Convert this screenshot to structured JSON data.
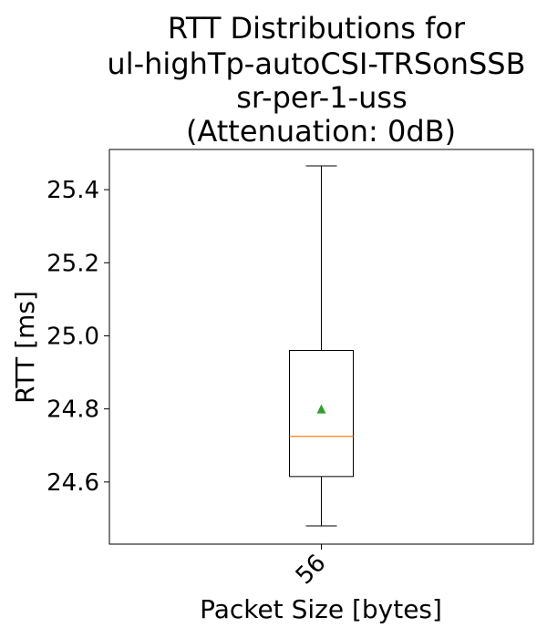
{
  "chart_data": {
    "type": "boxplot",
    "title_lines": [
      "RTT Distributions for",
      "ul-highTp-autoCSI-TRSonSSB",
      "sr-per-1-uss",
      "(Attenuation: 0dB)"
    ],
    "xlabel": "Packet Size [bytes]",
    "ylabel": "RTT [ms]",
    "categories": [
      "56"
    ],
    "ylim": [
      24.43,
      25.51
    ],
    "yticks": [
      24.6,
      24.8,
      25.0,
      25.2,
      25.4
    ],
    "ytick_labels": [
      "24.6",
      "24.8",
      "25.0",
      "25.2",
      "25.4"
    ],
    "boxes": [
      {
        "category": "56",
        "whisker_low": 24.48,
        "q1": 24.615,
        "median": 24.725,
        "q3": 24.96,
        "whisker_high": 25.465,
        "mean": 24.8
      }
    ],
    "colors": {
      "median": "#ff7f0e",
      "mean": "#2ca02c",
      "box": "#000000"
    }
  }
}
